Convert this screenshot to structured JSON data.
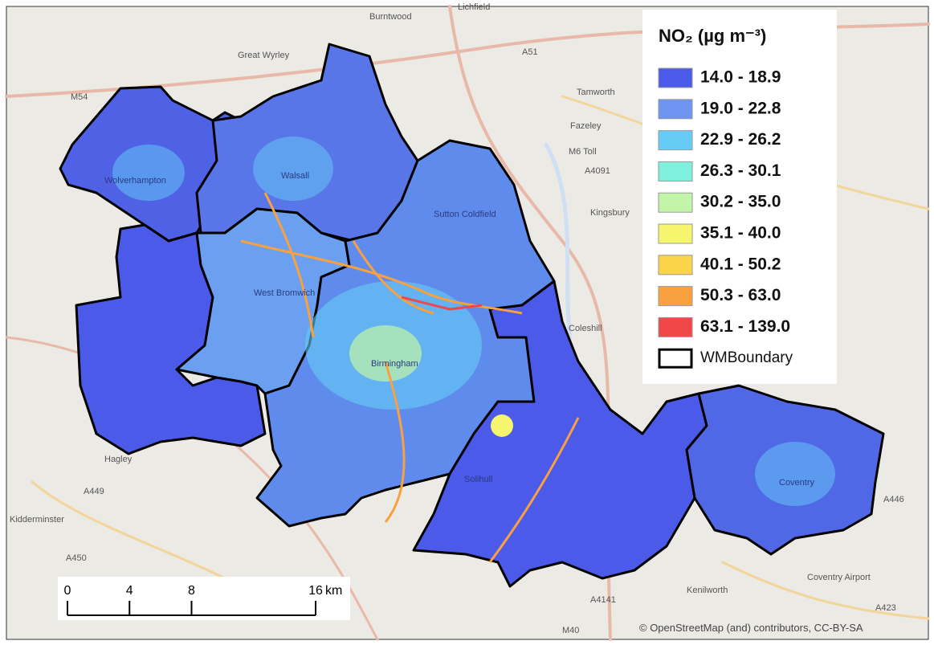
{
  "legend": {
    "title": "NO₂ (µg m⁻³)",
    "items": [
      {
        "label": "14.0 - 18.9",
        "color": "#4b5ae8"
      },
      {
        "label": "19.0 - 22.8",
        "color": "#6e93f0"
      },
      {
        "label": "22.9 - 26.2",
        "color": "#66ccf5"
      },
      {
        "label": "26.3 - 30.1",
        "color": "#7ff0dc"
      },
      {
        "label": "30.2 - 35.0",
        "color": "#c3f5a8"
      },
      {
        "label": "35.1 - 40.0",
        "color": "#f5f56e"
      },
      {
        "label": "40.1 - 50.2",
        "color": "#fcd44a"
      },
      {
        "label": "50.3 - 63.0",
        "color": "#f9a040"
      },
      {
        "label": "63.1 - 139.0",
        "color": "#f04848"
      }
    ],
    "boundary_label": "WMBoundary"
  },
  "scale_bar": {
    "ticks": [
      0,
      4,
      8,
      16
    ],
    "unit": "km"
  },
  "attribution": "© OpenStreetMap (and) contributors, CC-BY-SA",
  "map_labels": [
    "Burntwood",
    "Lichfield",
    "Great Wyrley",
    "Tamworth",
    "Fazeley",
    "Kingsbury",
    "Coleshill",
    "Hagley",
    "Kenilworth",
    "Coventry Airport",
    "Wolverhampton",
    "Walsall",
    "West Bromwich",
    "Birmingham",
    "Sutton Coldfield",
    "Solihull",
    "Coventry",
    "M54",
    "M6 Toll",
    "A51",
    "A4091",
    "A449",
    "A450",
    "A4141",
    "M40",
    "A423",
    "A446",
    "Kidderminster"
  ]
}
